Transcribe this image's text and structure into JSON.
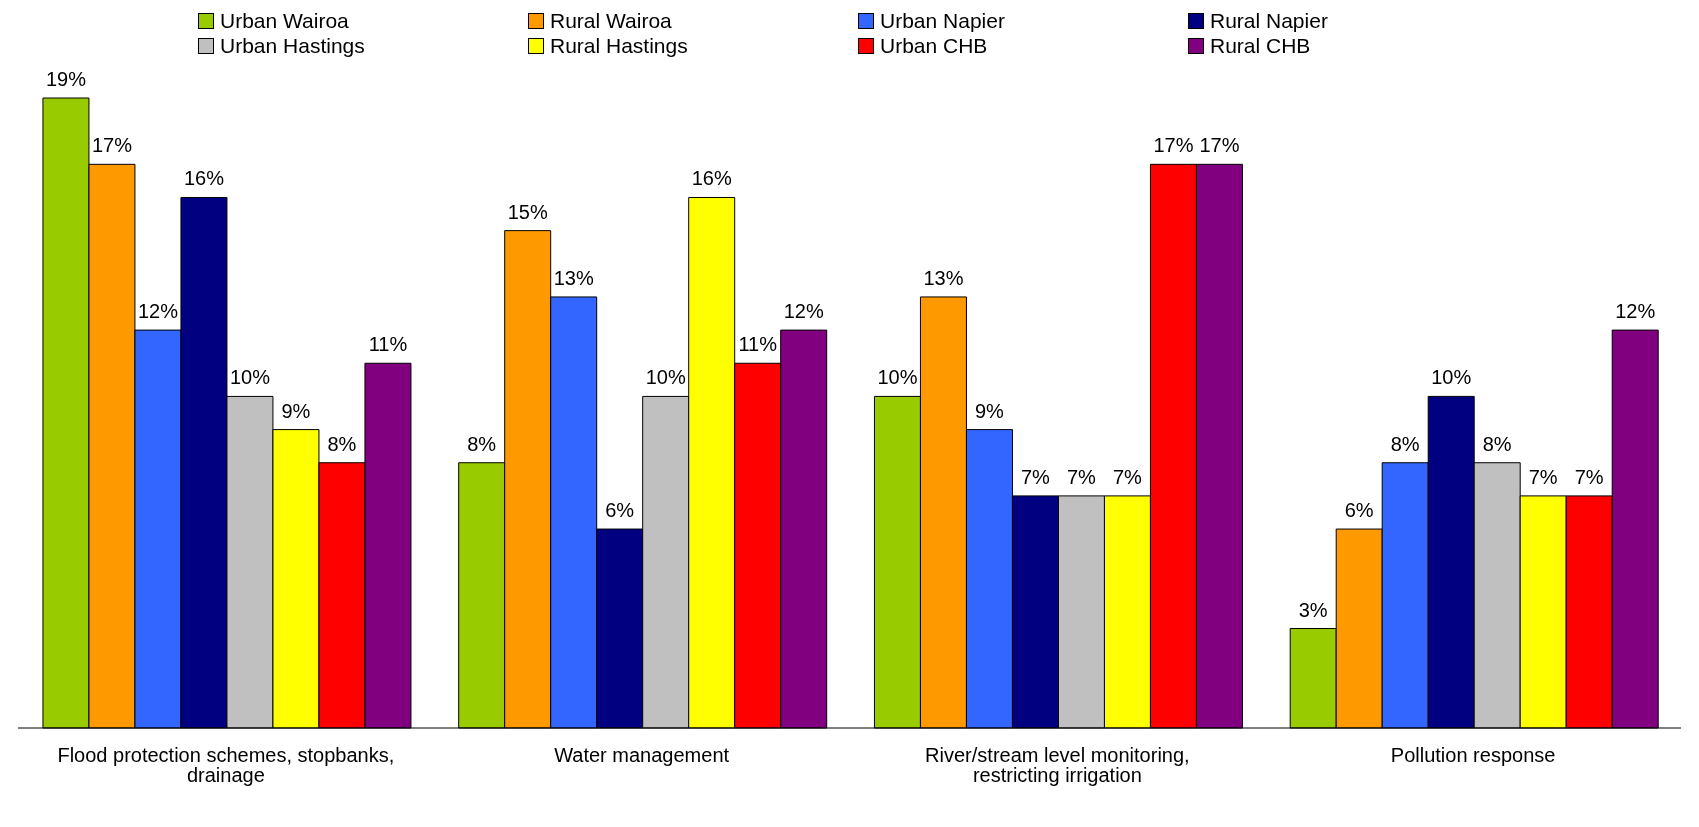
{
  "chart_data": {
    "type": "bar",
    "categories": [
      "Flood protection schemes, stopbanks, drainage",
      "Water management",
      "River/stream level monitoring, restricting irrigation",
      "Pollution response"
    ],
    "data_labels": true,
    "legend": "top",
    "series": [
      {
        "name": "Urban Wairoa",
        "color": "#99cc00",
        "values": [
          19,
          8,
          10,
          3
        ],
        "value_labels": [
          "19%",
          "8%",
          "10%",
          "3%"
        ]
      },
      {
        "name": "Rural Wairoa",
        "color": "#ff9900",
        "values": [
          17,
          15,
          13,
          6
        ],
        "value_labels": [
          "17%",
          "15%",
          "13%",
          "6%"
        ]
      },
      {
        "name": "Urban Napier",
        "color": "#3366ff",
        "values": [
          12,
          13,
          9,
          8
        ],
        "value_labels": [
          "12%",
          "13%",
          "9%",
          "8%"
        ]
      },
      {
        "name": "Rural Napier",
        "color": "#000080",
        "values": [
          16,
          6,
          7,
          10
        ],
        "value_labels": [
          "16%",
          "6%",
          "7%",
          "10%"
        ]
      },
      {
        "name": "Urban Hastings",
        "color": "#c0c0c0",
        "values": [
          10,
          10,
          7,
          8
        ],
        "value_labels": [
          "10%",
          "10%",
          "7%",
          "8%"
        ]
      },
      {
        "name": "Rural Hastings",
        "color": "#ffff00",
        "values": [
          9,
          16,
          7,
          7
        ],
        "value_labels": [
          "9%",
          "16%",
          "7%",
          "7%"
        ]
      },
      {
        "name": "Urban CHB",
        "color": "#ff0000",
        "values": [
          8,
          11,
          17,
          7
        ],
        "value_labels": [
          "8%",
          "11%",
          "17%",
          "7%"
        ]
      },
      {
        "name": "Rural CHB",
        "color": "#800080",
        "values": [
          11,
          12,
          17,
          12
        ],
        "value_labels": [
          "11%",
          "12%",
          "17%",
          "12%"
        ]
      }
    ]
  }
}
